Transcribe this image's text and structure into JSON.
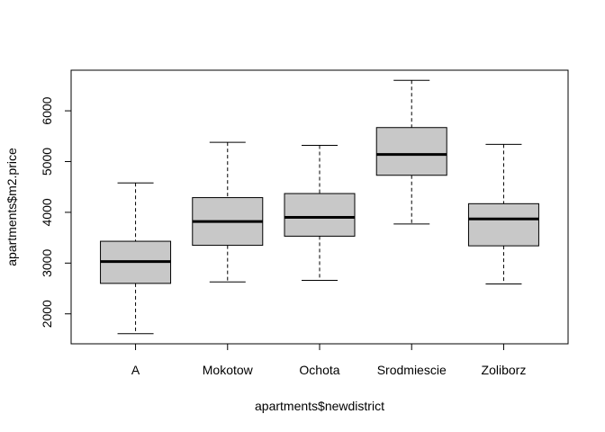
{
  "chart_data": {
    "type": "boxplot",
    "title": "",
    "xlabel": "apartments$newdistrict",
    "ylabel": "apartments$m2.price",
    "categories": [
      "A",
      "Mokotow",
      "Ochota",
      "Srodmiescie",
      "Zoliborz"
    ],
    "boxes": [
      {
        "category": "A",
        "whisker_low": 1610,
        "q1": 2600,
        "median": 3030,
        "q3": 3430,
        "whisker_high": 4580
      },
      {
        "category": "Mokotow",
        "whisker_low": 2630,
        "q1": 3350,
        "median": 3820,
        "q3": 4290,
        "whisker_high": 5380
      },
      {
        "category": "Ochota",
        "whisker_low": 2660,
        "q1": 3530,
        "median": 3900,
        "q3": 4370,
        "whisker_high": 5320
      },
      {
        "category": "Srodmiescie",
        "whisker_low": 3770,
        "q1": 4730,
        "median": 5140,
        "q3": 5670,
        "whisker_high": 6600
      },
      {
        "category": "Zoliborz",
        "whisker_low": 2590,
        "q1": 3340,
        "median": 3870,
        "q3": 4170,
        "whisker_high": 5340
      }
    ],
    "yticks": [
      2000,
      3000,
      4000,
      5000,
      6000
    ],
    "ylim": [
      1410,
      6800
    ],
    "box_color": "#c8c8c8",
    "grid": false,
    "legend": "none"
  }
}
